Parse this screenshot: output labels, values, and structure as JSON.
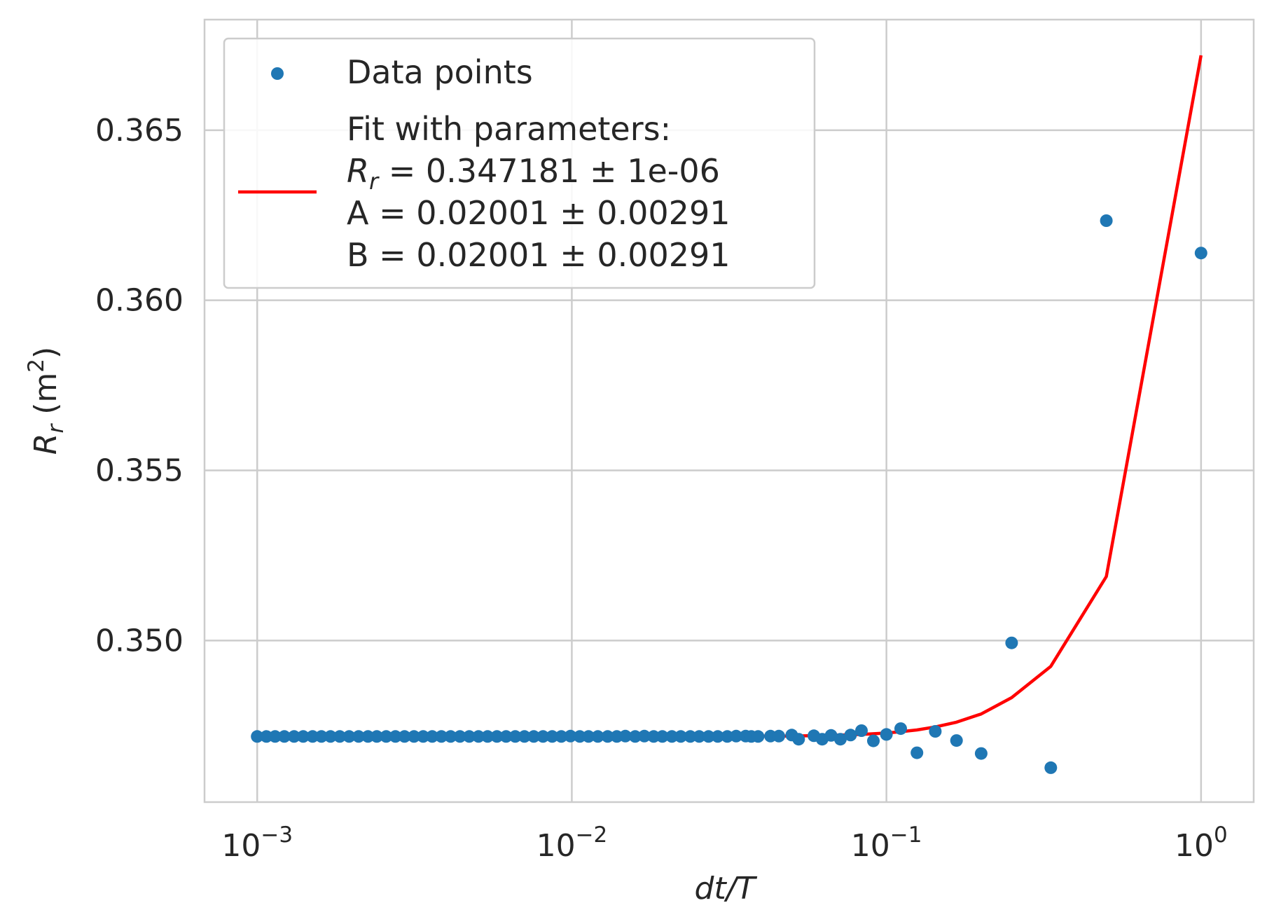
{
  "chart_data": {
    "type": "scatter",
    "x_scale": "log",
    "xlim": [
      0.00068,
      1.47
    ],
    "ylim": [
      0.34525,
      0.36825
    ],
    "x_ticks": [
      {
        "value": 0.001,
        "base": "10",
        "exp": "−3"
      },
      {
        "value": 0.01,
        "base": "10",
        "exp": "−2"
      },
      {
        "value": 0.1,
        "base": "10",
        "exp": "−1"
      },
      {
        "value": 1,
        "base": "10",
        "exp": "0"
      }
    ],
    "y_ticks": [
      {
        "value": 0.35,
        "label": "0.350"
      },
      {
        "value": 0.355,
        "label": "0.355"
      },
      {
        "value": 0.36,
        "label": "0.360"
      },
      {
        "value": 0.365,
        "label": "0.365"
      }
    ],
    "xlabel": "dt/T",
    "ylabel": {
      "symbol": "R",
      "sub": "r",
      "unit_prefix": "(m",
      "unit_sup": "2",
      "unit_suffix": ")"
    },
    "grid": true,
    "legend_position": "upper-left",
    "legend": {
      "points_label": "Data points",
      "fit_lines": [
        "Fit with parameters:",
        {
          "symbol": "R",
          "sub": "r",
          "text": " = 0.347181 ± 1e-06"
        },
        "A = 0.02001 ± 0.00291",
        "B = 0.02001 ± 0.00291"
      ]
    },
    "colors": {
      "points": "#1f77b4",
      "fit": "#ff0000",
      "grid": "#cccccc",
      "text": "#262626"
    },
    "series": [
      {
        "name": "Data points",
        "kind": "scatter",
        "x": [
          0.001,
          0.00107,
          0.00114,
          0.00122,
          0.00131,
          0.0014,
          0.0015,
          0.0016,
          0.00171,
          0.00183,
          0.00196,
          0.0021,
          0.00225,
          0.0024,
          0.00257,
          0.00275,
          0.00294,
          0.00315,
          0.00337,
          0.0036,
          0.00385,
          0.00412,
          0.00441,
          0.00472,
          0.00505,
          0.0054,
          0.00578,
          0.00618,
          0.00661,
          0.00707,
          0.00757,
          0.0081,
          0.00866,
          0.00926,
          0.0099,
          0.0106,
          0.0113,
          0.0121,
          0.013,
          0.0139,
          0.0148,
          0.0159,
          0.017,
          0.0182,
          0.0194,
          0.0208,
          0.0222,
          0.0238,
          0.0254,
          0.0272,
          0.0291,
          0.0312,
          0.0333,
          0.0357,
          0.0372,
          0.0391,
          0.0428,
          0.0455,
          0.05,
          0.0526,
          0.0588,
          0.0625,
          0.0667,
          0.0714,
          0.0769,
          0.0833,
          0.0909,
          0.1,
          0.111,
          0.125,
          0.143,
          0.167,
          0.2,
          0.25,
          0.333,
          0.5,
          1.0
        ],
        "y": [
          0.34718,
          0.34718,
          0.34718,
          0.34718,
          0.34718,
          0.34718,
          0.34718,
          0.34718,
          0.34718,
          0.34718,
          0.34718,
          0.34718,
          0.34718,
          0.34718,
          0.34718,
          0.34718,
          0.34718,
          0.34718,
          0.34718,
          0.34718,
          0.34718,
          0.34718,
          0.34718,
          0.34718,
          0.34718,
          0.34718,
          0.34718,
          0.34718,
          0.34718,
          0.34718,
          0.34718,
          0.34718,
          0.34718,
          0.34718,
          0.34719,
          0.34718,
          0.34718,
          0.34718,
          0.34718,
          0.34718,
          0.34719,
          0.34718,
          0.34719,
          0.34718,
          0.34718,
          0.34718,
          0.34718,
          0.34718,
          0.34718,
          0.34718,
          0.34718,
          0.34718,
          0.34719,
          0.34719,
          0.34718,
          0.34718,
          0.34719,
          0.34719,
          0.34722,
          0.3471,
          0.3472,
          0.3471,
          0.34721,
          0.3471,
          0.34722,
          0.34735,
          0.34705,
          0.34724,
          0.34741,
          0.3467,
          0.34733,
          0.34706,
          0.34668,
          0.34993,
          0.34626,
          0.36234,
          0.36139
        ]
      },
      {
        "name": "Fit",
        "kind": "line",
        "x": [
          0.001,
          0.002,
          0.005,
          0.01,
          0.02,
          0.03,
          0.05,
          0.0714,
          0.0833,
          0.1,
          0.111,
          0.125,
          0.143,
          0.167,
          0.2,
          0.25,
          0.333,
          0.5,
          1.0
        ],
        "y": [
          0.34718,
          0.34718,
          0.34718,
          0.34718,
          0.34718,
          0.34719,
          0.34719,
          0.34722,
          0.34724,
          0.34728,
          0.34732,
          0.34737,
          0.34746,
          0.3476,
          0.34784,
          0.34832,
          0.34924,
          0.35188,
          0.3672
        ]
      }
    ]
  }
}
